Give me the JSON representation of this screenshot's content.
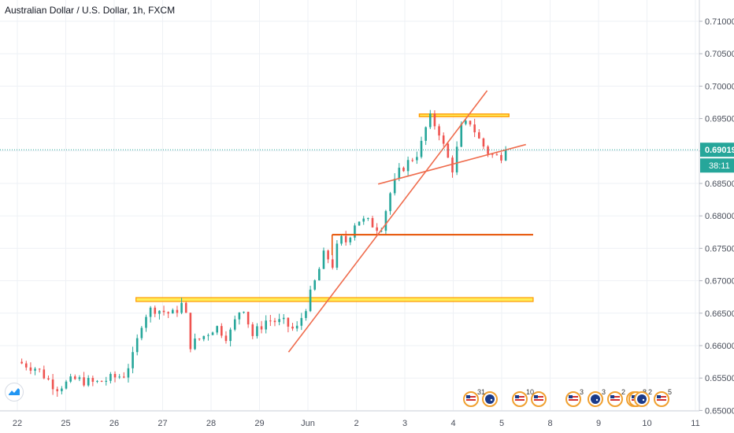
{
  "header": {
    "title": "Australian Dollar / U.S. Dollar, 1h, FXCM"
  },
  "price_label": {
    "value": "0.69019",
    "countdown": "38:11",
    "color": "#26a69a"
  },
  "colors": {
    "up": "#26a69a",
    "down": "#ef5350",
    "trendline": "#ef6c4d",
    "resistance_line": "#e65100",
    "zone_fill": "#ffeb3b",
    "zone_stroke": "#ff9800",
    "grid": "#eef1f5",
    "axis_text": "#4a4f5b"
  },
  "events": [
    {
      "label": "31",
      "icons": [
        "us-flag-icon",
        "au-flag-icon"
      ]
    },
    {
      "label": "10",
      "icons": [
        "us-flag-icon",
        "us-flag-icon"
      ]
    },
    {
      "label": "3",
      "icons": [
        "us-flag-icon"
      ]
    },
    {
      "label": "3",
      "icons": [
        "au-flag-icon"
      ]
    },
    {
      "label": "2",
      "icons": [
        "us-flag-icon",
        "us-flag-icon"
      ]
    },
    {
      "label": "8",
      "icons": [
        "us-flag-icon"
      ]
    },
    {
      "label": "2",
      "icons": [
        "au-flag-icon"
      ]
    },
    {
      "label": "5",
      "icons": [
        "us-flag-icon"
      ]
    }
  ],
  "chart_data": {
    "type": "candlestick",
    "x_ticks": [
      "22",
      "25",
      "26",
      "27",
      "28",
      "29",
      "Jun",
      "2",
      "3",
      "4",
      "5",
      "8",
      "9",
      "10",
      "11"
    ],
    "y_ticks": [
      "0.71000",
      "0.70500",
      "0.70000",
      "0.69500",
      "0.69000",
      "0.68500",
      "0.68000",
      "0.67500",
      "0.67000",
      "0.66500",
      "0.66000",
      "0.65500",
      "0.65000"
    ],
    "ylim": [
      0.65,
      0.712
    ],
    "last_price": 0.69019,
    "price_path": [
      {
        "x": 0,
        "y": 0.6575
      },
      {
        "x": 0.4,
        "y": 0.6565
      },
      {
        "x": 0.8,
        "y": 0.6535
      },
      {
        "x": 1.2,
        "y": 0.6548
      },
      {
        "x": 1.6,
        "y": 0.6542
      },
      {
        "x": 2.2,
        "y": 0.6555
      },
      {
        "x": 2.4,
        "y": 0.6585
      },
      {
        "x": 2.6,
        "y": 0.6645
      },
      {
        "x": 2.8,
        "y": 0.6658
      },
      {
        "x": 3.2,
        "y": 0.6648
      },
      {
        "x": 3.45,
        "y": 0.6668
      },
      {
        "x": 3.55,
        "y": 0.66
      },
      {
        "x": 3.8,
        "y": 0.6612
      },
      {
        "x": 4.1,
        "y": 0.663
      },
      {
        "x": 4.35,
        "y": 0.6612
      },
      {
        "x": 4.65,
        "y": 0.6665
      },
      {
        "x": 4.85,
        "y": 0.6615
      },
      {
        "x": 5.15,
        "y": 0.664
      },
      {
        "x": 5.5,
        "y": 0.6635
      },
      {
        "x": 5.75,
        "y": 0.6622
      },
      {
        "x": 6.0,
        "y": 0.6668
      },
      {
        "x": 6.2,
        "y": 0.671
      },
      {
        "x": 6.35,
        "y": 0.6745
      },
      {
        "x": 6.5,
        "y": 0.6722
      },
      {
        "x": 6.65,
        "y": 0.6765
      },
      {
        "x": 6.8,
        "y": 0.676
      },
      {
        "x": 7.0,
        "y": 0.6795
      },
      {
        "x": 7.25,
        "y": 0.679
      },
      {
        "x": 7.5,
        "y": 0.678
      },
      {
        "x": 7.7,
        "y": 0.6835
      },
      {
        "x": 7.9,
        "y": 0.687
      },
      {
        "x": 8.1,
        "y": 0.6885
      },
      {
        "x": 8.3,
        "y": 0.69
      },
      {
        "x": 8.5,
        "y": 0.6953
      },
      {
        "x": 8.7,
        "y": 0.6932
      },
      {
        "x": 8.85,
        "y": 0.6895
      },
      {
        "x": 9.0,
        "y": 0.687
      },
      {
        "x": 9.15,
        "y": 0.6935
      },
      {
        "x": 9.35,
        "y": 0.6945
      },
      {
        "x": 9.55,
        "y": 0.6915
      },
      {
        "x": 9.75,
        "y": 0.6895
      },
      {
        "x": 9.95,
        "y": 0.689
      },
      {
        "x": 10.1,
        "y": 0.69019
      }
    ],
    "drawings": {
      "support_zone": {
        "y1": 0.6668,
        "y2": 0.6674,
        "x_start": 2.45,
        "x_end": 10.65
      },
      "resistance_line": {
        "y": 0.6771,
        "x_start": 6.5,
        "x_end": 10.65
      },
      "top_zone": {
        "y1": 0.6953,
        "y2": 0.6957,
        "x_start": 8.3,
        "x_end": 10.15
      },
      "trendline_steep": {
        "x1": 5.6,
        "y1": 0.659,
        "x2": 9.7,
        "y2": 0.6993
      },
      "trendline_rising": {
        "x1": 7.45,
        "y1": 0.6849,
        "x2": 10.5,
        "y2": 0.691
      }
    }
  }
}
